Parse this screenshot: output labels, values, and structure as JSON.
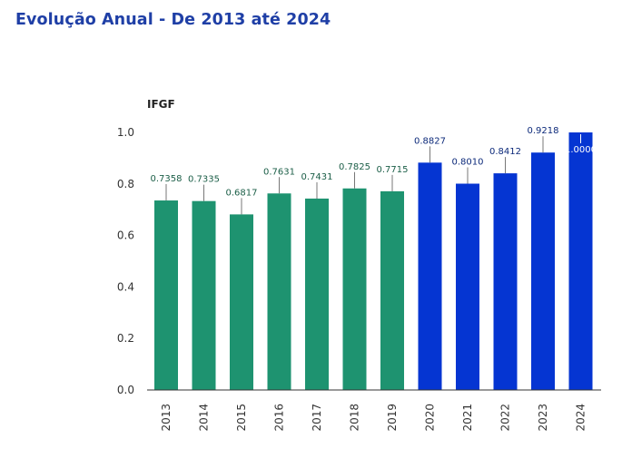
{
  "page": {
    "title": "Evolução Anual - De 2013 até 2024"
  },
  "chart_data": {
    "type": "bar",
    "ylabel": "IFGF",
    "xlabel": "",
    "ylim": [
      0,
      1.0
    ],
    "yticks": [
      "0.0",
      "0.2",
      "0.4",
      "0.6",
      "0.8",
      "1.0"
    ],
    "categories": [
      "2013",
      "2014",
      "2015",
      "2016",
      "2017",
      "2018",
      "2019",
      "2020",
      "2021",
      "2022",
      "2023",
      "2024"
    ],
    "values": [
      0.7358,
      0.7335,
      0.6817,
      0.7631,
      0.7431,
      0.7825,
      0.7715,
      0.8827,
      0.801,
      0.8412,
      0.9218,
      1.0
    ],
    "labels": [
      "0.7358",
      "0.7335",
      "0.6817",
      "0.7631",
      "0.7431",
      "0.7825",
      "0.7715",
      "0.8827",
      "0.8010",
      "0.8412",
      "0.9218",
      "1.0000"
    ],
    "colors": [
      "#1e9370",
      "#1e9370",
      "#1e9370",
      "#1e9370",
      "#1e9370",
      "#1e9370",
      "#1e9370",
      "#0535d2",
      "#0535d2",
      "#0535d2",
      "#0535d2",
      "#0535d2"
    ],
    "label_colors": [
      "#1b5e47",
      "#1b5e47",
      "#1b5e47",
      "#1b5e47",
      "#1b5e47",
      "#1b5e47",
      "#1b5e47",
      "#0d2a7a",
      "#0d2a7a",
      "#0d2a7a",
      "#0d2a7a",
      "#0d2a7a"
    ],
    "grid": false,
    "legend": "none"
  }
}
